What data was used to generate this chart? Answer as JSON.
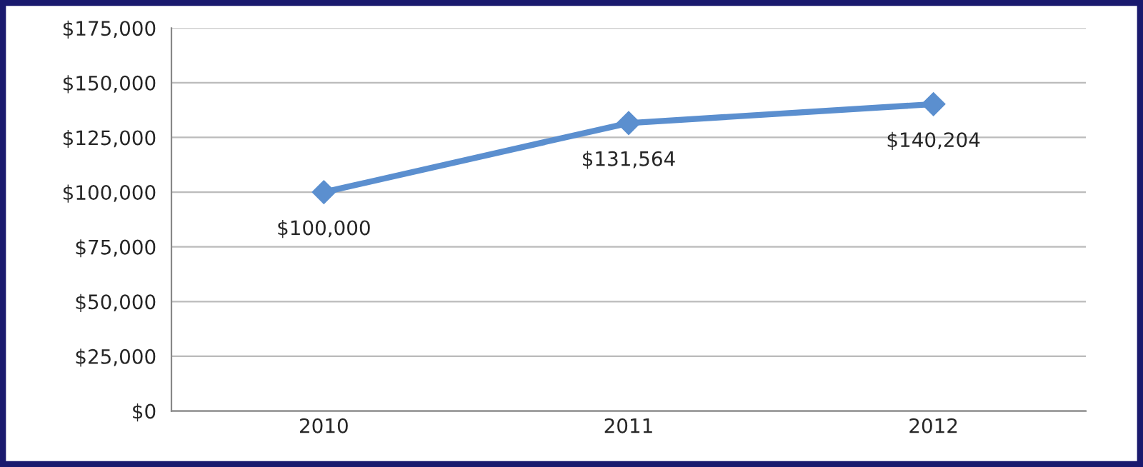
{
  "chart_data": {
    "type": "line",
    "categories": [
      "2010",
      "2011",
      "2012"
    ],
    "series": [
      {
        "color": "#5b8fcf",
        "values": [
          100000,
          131564,
          140204
        ],
        "value_labels": [
          "$100,000",
          "$131,564",
          "$140,204"
        ]
      }
    ],
    "ylim": [
      0,
      175000
    ],
    "yticks": [
      {
        "value": 0,
        "label": "$0"
      },
      {
        "value": 25000,
        "label": "$25,000"
      },
      {
        "value": 50000,
        "label": "$50,000"
      },
      {
        "value": 75000,
        "label": "$75,000"
      },
      {
        "value": 100000,
        "label": "$100,000"
      },
      {
        "value": 125000,
        "label": "$125,000"
      },
      {
        "value": 150000,
        "label": "$150,000"
      },
      {
        "value": 175000,
        "label": "$175,000"
      }
    ],
    "grid": "y",
    "marker": "diamond",
    "line_style": "solid",
    "legend": false
  }
}
